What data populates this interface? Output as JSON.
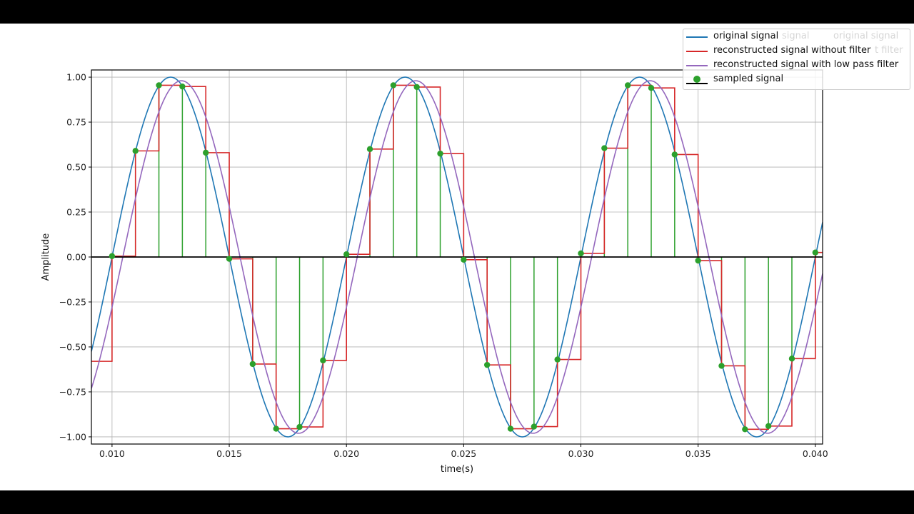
{
  "chart_data": {
    "type": "line",
    "title": "",
    "xlabel": "time(s)",
    "ylabel": "Amplitude",
    "xlim": [
      0.00912,
      0.04031
    ],
    "ylim": [
      -1.04,
      1.04
    ],
    "grid": true,
    "legend_position": "upper right (outside axes)",
    "x_ticks": [
      "0.010",
      "0.015",
      "0.020",
      "0.025",
      "0.030",
      "0.035",
      "0.040"
    ],
    "x_tick_values": [
      0.01,
      0.015,
      0.02,
      0.025,
      0.03,
      0.035,
      0.04
    ],
    "y_ticks": [
      "1.00",
      "0.75",
      "0.50",
      "0.25",
      "0.00",
      "−0.25",
      "−0.50",
      "−0.75",
      "−1.00"
    ],
    "y_tick_values": [
      1.0,
      0.75,
      0.5,
      0.25,
      0.0,
      -0.25,
      -0.5,
      -0.75,
      -1.0
    ],
    "series": [
      {
        "name": "original signal",
        "color": "#1f77b4",
        "kind": "line",
        "function": "sin(2*pi*100*t)",
        "frequency_hz": 100,
        "amplitude": 1.0
      },
      {
        "name": "reconstructed signal without filter",
        "color": "#d62728",
        "kind": "step (zero-order hold)",
        "x": [
          0.009,
          0.01,
          0.011,
          0.012,
          0.013,
          0.014,
          0.015,
          0.016,
          0.017,
          0.018,
          0.019,
          0.02,
          0.021,
          0.022,
          0.023,
          0.024,
          0.025,
          0.026,
          0.027,
          0.028,
          0.029,
          0.03,
          0.031,
          0.032,
          0.033,
          0.034,
          0.035,
          0.036,
          0.037,
          0.038,
          0.039,
          0.04
        ],
        "values": [
          -0.58,
          0.005,
          0.59,
          0.955,
          0.948,
          0.58,
          -0.01,
          -0.595,
          -0.955,
          -0.945,
          -0.575,
          0.015,
          0.6,
          0.955,
          0.945,
          0.575,
          -0.015,
          -0.6,
          -0.955,
          -0.943,
          -0.57,
          0.02,
          0.605,
          0.955,
          0.94,
          0.57,
          -0.02,
          -0.605,
          -0.958,
          -0.94,
          -0.565,
          0.025
        ]
      },
      {
        "name": "reconstructed signal with low pass filter",
        "color": "#9467bd",
        "kind": "line",
        "function": "0.98*sin(2*pi*100*(t-0.00046))",
        "amplitude": 0.98,
        "delay_s": 0.00046
      },
      {
        "name": "sampled signal",
        "color": "#2ca02c",
        "kind": "stem",
        "baseline_color": "#000000",
        "x": [
          0.01,
          0.011,
          0.012,
          0.013,
          0.014,
          0.015,
          0.016,
          0.017,
          0.018,
          0.019,
          0.02,
          0.021,
          0.022,
          0.023,
          0.024,
          0.025,
          0.026,
          0.027,
          0.028,
          0.029,
          0.03,
          0.031,
          0.032,
          0.033,
          0.034,
          0.035,
          0.036,
          0.037,
          0.038,
          0.039,
          0.04
        ],
        "values": [
          0.005,
          0.59,
          0.955,
          0.948,
          0.58,
          -0.01,
          -0.595,
          -0.955,
          -0.945,
          -0.575,
          0.015,
          0.6,
          0.955,
          0.945,
          0.575,
          -0.015,
          -0.6,
          -0.955,
          -0.943,
          -0.57,
          0.02,
          0.605,
          0.955,
          0.94,
          0.57,
          -0.02,
          -0.605,
          -0.958,
          -0.94,
          -0.565,
          0.025
        ]
      }
    ]
  },
  "legend": {
    "items": [
      {
        "label": "original signal",
        "color": "#1f77b4",
        "kind": "line"
      },
      {
        "label": "reconstructed signal without filter",
        "color": "#d62728",
        "kind": "line"
      },
      {
        "label": "reconstructed signal with low pass filter",
        "color": "#9467bd",
        "kind": "line"
      },
      {
        "label": "sampled signal",
        "color": "#2ca02c",
        "kind": "stem"
      }
    ],
    "ghost_texts": [
      "signal",
      "original signal",
      "t filter"
    ]
  },
  "axes": {
    "xlabel": "time(s)",
    "ylabel": "Amplitude"
  }
}
